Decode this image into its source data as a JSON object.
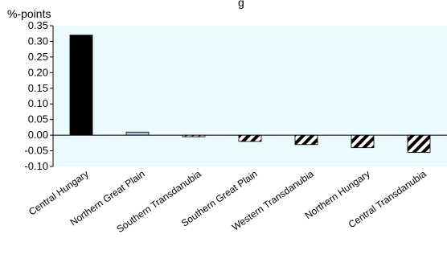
{
  "chart_data": {
    "type": "bar",
    "title": "",
    "title_visible_fragment": "g",
    "ylabel": "%-points",
    "xlabel": "",
    "ylim": [
      -0.1,
      0.35
    ],
    "ytick_step": 0.05,
    "yticks": [
      "0.35",
      "0.30",
      "0.25",
      "0.20",
      "0.15",
      "0.10",
      "0.05",
      "0.00",
      "-0.05",
      "-0.10"
    ],
    "grid": false,
    "plot_background": "#eafaff",
    "categories": [
      "Central Hungary",
      "Northern Great Plain",
      "Southern Transdanubia",
      "Southern Great Plain",
      "Western Transdanubia",
      "Northern Hungary",
      "Central Transdanubia"
    ],
    "values": [
      0.32,
      0.01,
      -0.005,
      -0.02,
      -0.03,
      -0.04,
      -0.055
    ],
    "bar_styles": [
      "solid-black",
      "light-blue",
      "light-hatch",
      "hatch",
      "hatch",
      "hatch",
      "hatch"
    ]
  }
}
